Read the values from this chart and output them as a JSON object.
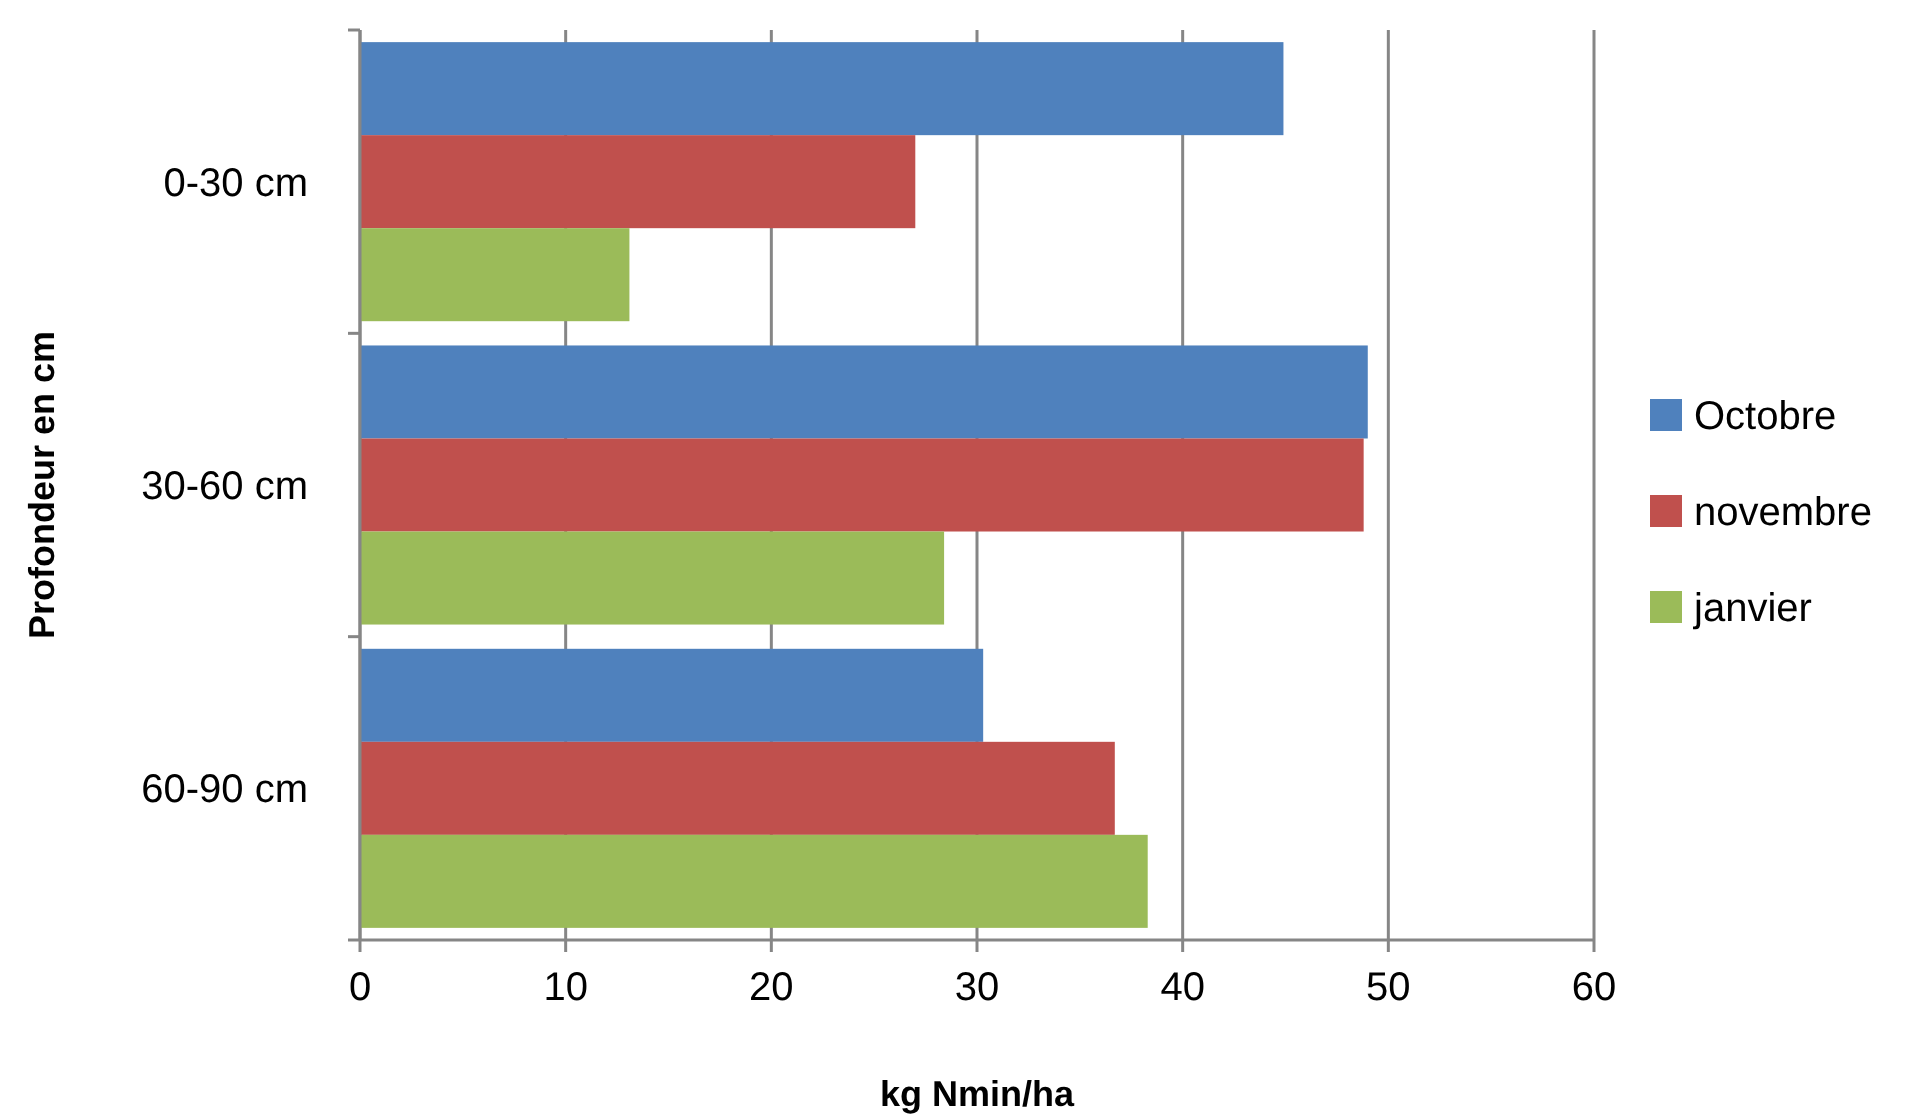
{
  "chart_data": {
    "type": "bar",
    "orientation": "horizontal",
    "xlabel": "kg Nmin/ha",
    "ylabel": "Profondeur en cm",
    "categories": [
      "0-30 cm",
      "30-60 cm",
      "60-90 cm"
    ],
    "series": [
      {
        "name": "Octobre",
        "color": "#4f81bd",
        "values": [
          44.9,
          49.0,
          30.3
        ]
      },
      {
        "name": "novembre",
        "color": "#c0504d",
        "values": [
          27.0,
          48.8,
          36.7
        ]
      },
      {
        "name": "janvier",
        "color": "#9bbb59",
        "values": [
          13.1,
          28.4,
          38.3
        ]
      }
    ],
    "xlim": [
      0,
      60
    ],
    "xticks": [
      0,
      10,
      20,
      30,
      40,
      50,
      60
    ],
    "grid": "x",
    "legend": "right"
  }
}
